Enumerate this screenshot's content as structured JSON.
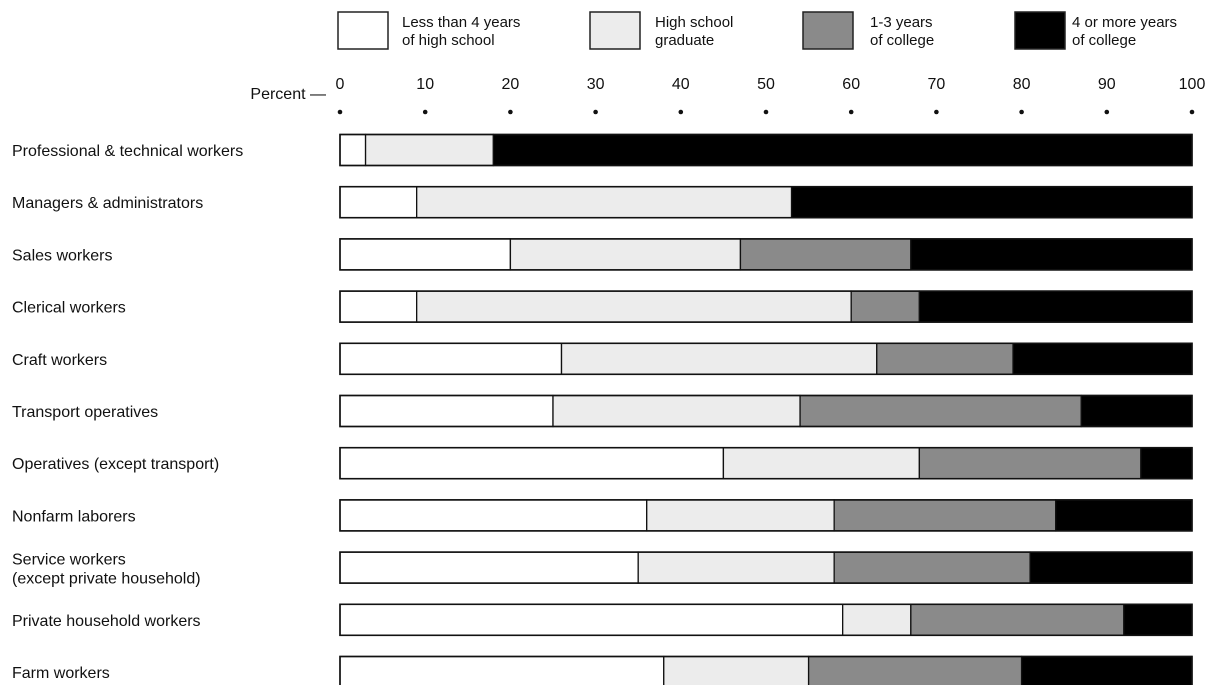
{
  "chart_data": {
    "type": "bar",
    "orientation": "horizontal",
    "stacked": true,
    "percent_axis_label": "Percent —",
    "xlim": [
      0,
      100
    ],
    "x_ticks": [
      "0",
      "10",
      "20",
      "30",
      "40",
      "50",
      "60",
      "70",
      "80",
      "90",
      "100"
    ],
    "categories": [
      [
        "Professional & technical workers"
      ],
      [
        "Managers & administrators"
      ],
      [
        "Sales workers"
      ],
      [
        "Clerical workers"
      ],
      [
        "Craft workers"
      ],
      [
        "Transport operatives"
      ],
      [
        "Operatives (except transport)"
      ],
      [
        "Nonfarm laborers"
      ],
      [
        "Service workers",
        "(except private household)"
      ],
      [
        "Private household workers"
      ],
      [
        "Farm workers"
      ]
    ],
    "series": [
      {
        "name": [
          "Less than 4 years",
          "of high school"
        ],
        "color": "#ffffff",
        "values": [
          3,
          9,
          20,
          9,
          26,
          25,
          45,
          36,
          35,
          59,
          38
        ]
      },
      {
        "name": [
          "High school",
          "graduate"
        ],
        "color": "#ececec",
        "values": [
          15,
          44,
          27,
          51,
          37,
          29,
          23,
          22,
          23,
          8,
          17
        ]
      },
      {
        "name": [
          "1-3 years",
          "of college"
        ],
        "color": "#8a8a8a",
        "values": [
          0,
          0,
          20,
          8,
          16,
          33,
          26,
          26,
          23,
          25,
          25
        ]
      },
      {
        "name": [
          "4 or more years",
          "of college"
        ],
        "color": "#000000",
        "values": [
          82,
          47,
          33,
          32,
          21,
          13,
          6,
          16,
          19,
          8,
          20
        ]
      }
    ],
    "legend_position": "top"
  }
}
